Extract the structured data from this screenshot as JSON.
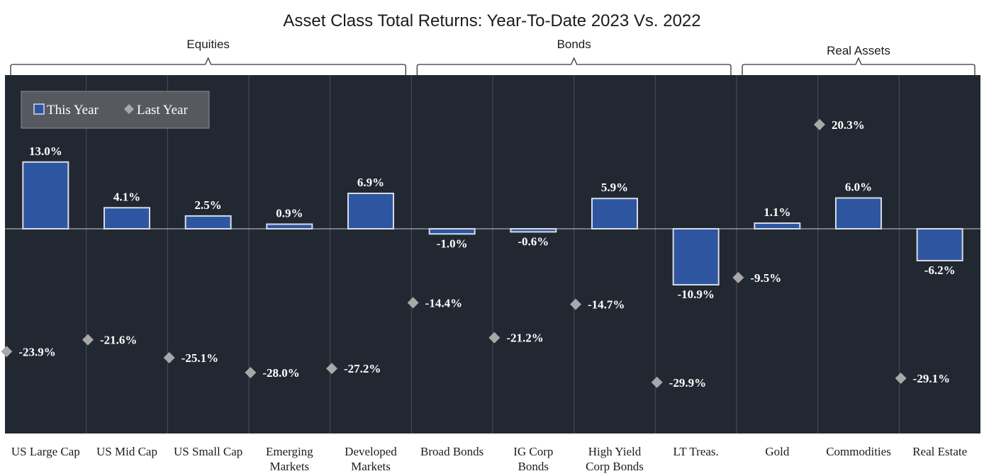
{
  "chart_data": {
    "type": "bar",
    "title": "Asset Class Total Returns: Year-To-Date 2023 Vs. 2022",
    "groups": [
      {
        "label": "Equities",
        "start": 0,
        "end": 4
      },
      {
        "label": "Bonds",
        "start": 5,
        "end": 8
      },
      {
        "label": "Real Assets",
        "start": 9,
        "end": 11
      }
    ],
    "categories": [
      [
        "US Large Cap"
      ],
      [
        "US Mid Cap"
      ],
      [
        "US Small Cap"
      ],
      [
        "Emerging",
        "Markets"
      ],
      [
        "Developed",
        "Markets"
      ],
      [
        "Broad Bonds"
      ],
      [
        "IG Corp",
        "Bonds"
      ],
      [
        "High Yield",
        "Corp Bonds"
      ],
      [
        "LT Treas."
      ],
      [
        "Gold"
      ],
      [
        "Commodities"
      ],
      [
        "Real Estate"
      ]
    ],
    "series": [
      {
        "name": "This Year",
        "type": "bar",
        "values": [
          13.0,
          4.1,
          2.5,
          0.9,
          6.9,
          -1.0,
          -0.6,
          5.9,
          -10.9,
          1.1,
          6.0,
          -6.2
        ],
        "labels": [
          "13.0%",
          "4.1%",
          "2.5%",
          "0.9%",
          "6.9%",
          "-1.0%",
          "-0.6%",
          "5.9%",
          "-10.9%",
          "1.1%",
          "6.0%",
          "-6.2%"
        ]
      },
      {
        "name": "Last Year",
        "type": "scatter",
        "values": [
          -23.9,
          -21.6,
          -25.1,
          -28.0,
          -27.2,
          -14.4,
          -21.2,
          -14.7,
          -29.9,
          -9.5,
          20.3,
          -29.1
        ],
        "labels": [
          "-23.9%",
          "-21.6%",
          "-25.1%",
          "-28.0%",
          "-27.2%",
          "-14.4%",
          "-21.2%",
          "-14.7%",
          "-29.9%",
          "-9.5%",
          "20.3%",
          "-29.1%"
        ]
      }
    ],
    "ylim": [
      -40,
      30
    ],
    "grid": "vertical",
    "legend": "top-left",
    "colors": {
      "background": "#222832",
      "bar": "#2e56a0",
      "bar_outline": "#d6dbe6",
      "marker": "#a8a8a8",
      "label": "#ffffff",
      "grid": "#4a505b"
    }
  }
}
